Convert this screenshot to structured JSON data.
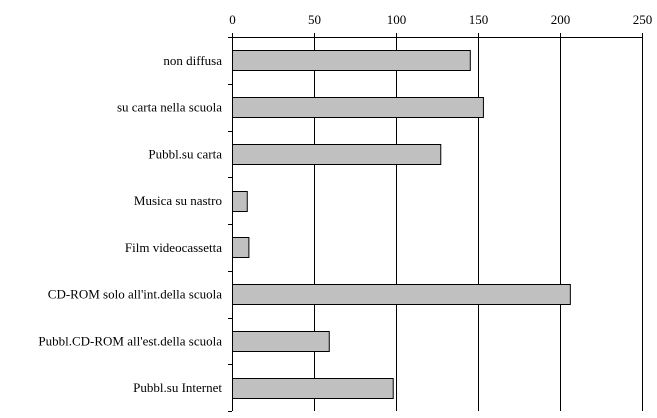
{
  "chart_data": {
    "type": "bar",
    "orientation": "horizontal",
    "title": "",
    "xlabel": "",
    "ylabel": "",
    "categories": [
      "non diffusa",
      "su carta nella scuola",
      "Pubbl.su carta",
      "Musica su nastro",
      "Film videocassetta",
      "CD-ROM solo all'int.della scuola",
      "Pubbl.CD-ROM all'est.della scuola",
      "Pubbl.su Internet"
    ],
    "values": [
      145,
      153,
      127,
      9,
      10,
      206,
      59,
      98
    ],
    "xlim": [
      0,
      250
    ],
    "xticks": [
      0,
      50,
      100,
      150,
      200,
      250
    ],
    "xtick_labels": [
      "0",
      "50",
      "100",
      "150",
      "200",
      "250"
    ],
    "x_axis_position": "top",
    "grid": "vertical",
    "legend": "none",
    "bar_color": "#c0c0c0"
  }
}
